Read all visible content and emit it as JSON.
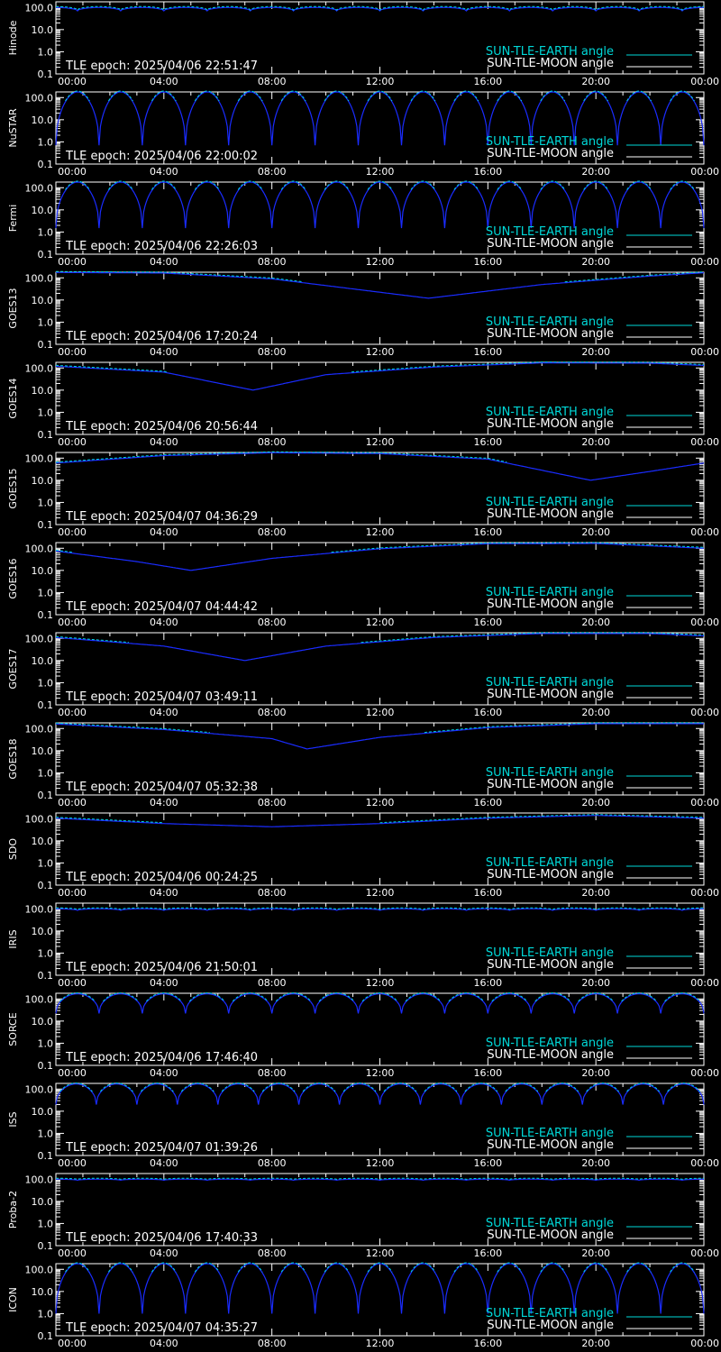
{
  "chart_data": [
    {
      "type": "line",
      "ylabel": "Hinode",
      "epoch": "TLE epoch: 2025/04/06 22:51:47",
      "pattern": "osc",
      "cycles": 15,
      "low": 70,
      "high": 100,
      "phase": 0.5
    },
    {
      "type": "line",
      "ylabel": "NuSTAR",
      "epoch": "TLE epoch: 2025/04/06 22:00:02",
      "pattern": "osc",
      "cycles": 15,
      "low": 0.7,
      "high": 180,
      "phase": 0.0
    },
    {
      "type": "line",
      "ylabel": "Fermi",
      "epoch": "TLE epoch: 2025/04/06 22:26:03",
      "pattern": "osc",
      "cycles": 15,
      "low": 1.5,
      "high": 180,
      "phase": 0.0
    },
    {
      "type": "line",
      "ylabel": "GOES13",
      "epoch": "TLE epoch: 2025/04/06 17:20:24",
      "pattern": "vee",
      "v": [
        [
          0,
          175
        ],
        [
          4,
          165
        ],
        [
          8,
          90
        ],
        [
          13.8,
          12
        ],
        [
          18,
          50
        ],
        [
          22,
          120
        ],
        [
          24,
          170
        ]
      ]
    },
    {
      "type": "line",
      "ylabel": "GOES14",
      "epoch": "TLE epoch: 2025/04/06 20:56:44",
      "pattern": "vee",
      "v": [
        [
          0,
          120
        ],
        [
          4,
          65
        ],
        [
          7.3,
          10
        ],
        [
          10,
          50
        ],
        [
          14,
          110
        ],
        [
          18,
          170
        ],
        [
          22,
          165
        ],
        [
          24,
          130
        ]
      ]
    },
    {
      "type": "line",
      "ylabel": "GOES15",
      "epoch": "TLE epoch: 2025/04/07 04:36:29",
      "pattern": "vee",
      "v": [
        [
          0,
          60
        ],
        [
          4,
          130
        ],
        [
          8,
          175
        ],
        [
          12,
          160
        ],
        [
          16,
          90
        ],
        [
          19.8,
          10
        ],
        [
          22,
          25
        ],
        [
          24,
          60
        ]
      ]
    },
    {
      "type": "line",
      "ylabel": "GOES16",
      "epoch": "TLE epoch: 2025/04/07 04:44:42",
      "pattern": "vee",
      "v": [
        [
          0,
          75
        ],
        [
          3,
          25
        ],
        [
          5,
          10
        ],
        [
          8,
          35
        ],
        [
          12,
          95
        ],
        [
          16,
          160
        ],
        [
          20,
          165
        ],
        [
          24,
          100
        ]
      ]
    },
    {
      "type": "line",
      "ylabel": "GOES17",
      "epoch": "TLE epoch: 2025/04/07 03:49:11",
      "pattern": "vee",
      "v": [
        [
          0,
          110
        ],
        [
          4,
          45
        ],
        [
          7,
          10
        ],
        [
          10,
          45
        ],
        [
          14,
          110
        ],
        [
          18,
          165
        ],
        [
          22,
          165
        ],
        [
          24,
          130
        ]
      ]
    },
    {
      "type": "line",
      "ylabel": "GOES18",
      "epoch": "TLE epoch: 2025/04/07 05:32:38",
      "pattern": "vee",
      "v": [
        [
          0,
          160
        ],
        [
          4,
          90
        ],
        [
          8,
          35
        ],
        [
          9.3,
          12
        ],
        [
          12,
          40
        ],
        [
          16,
          110
        ],
        [
          20,
          165
        ],
        [
          24,
          165
        ]
      ]
    },
    {
      "type": "line",
      "ylabel": "SDO",
      "epoch": "TLE epoch: 2025/04/06 00:24:25",
      "pattern": "vee",
      "v": [
        [
          0,
          105
        ],
        [
          4,
          60
        ],
        [
          8,
          43
        ],
        [
          12,
          60
        ],
        [
          16,
          105
        ],
        [
          20,
          140
        ],
        [
          24,
          105
        ]
      ]
    },
    {
      "type": "line",
      "ylabel": "IRIS",
      "epoch": "TLE epoch: 2025/04/06 21:50:01",
      "pattern": "osc",
      "cycles": 15,
      "low": 85,
      "high": 100,
      "phase": 0.5
    },
    {
      "type": "line",
      "ylabel": "SORCE",
      "epoch": "TLE epoch: 2025/04/06 17:46:40",
      "pattern": "osc",
      "cycles": 15,
      "low": 22,
      "high": 170,
      "phase": 0.0
    },
    {
      "type": "line",
      "ylabel": "ISS",
      "epoch": "TLE epoch: 2025/04/07 01:39:26",
      "pattern": "osc",
      "cycles": 16,
      "low": 20,
      "high": 170,
      "phase": 0.0
    },
    {
      "type": "line",
      "ylabel": "Proba-2",
      "epoch": "TLE epoch: 2025/04/06 17:40:33",
      "pattern": "osc",
      "cycles": 15,
      "low": 90,
      "high": 100,
      "phase": 0.5
    },
    {
      "type": "line",
      "ylabel": "ICON",
      "epoch": "TLE epoch: 2025/04/07 04:35:27",
      "pattern": "osc",
      "cycles": 15,
      "low": 1,
      "high": 180,
      "phase": 0.0
    }
  ],
  "x_ticks": [
    "00:00",
    "04:00",
    "08:00",
    "12:00",
    "16:00",
    "20:00",
    "00:00"
  ],
  "y_ticks": [
    "100.0",
    "10.0",
    "1.0",
    "0.1"
  ],
  "legend": {
    "earth": "SUN-TLE-EARTH angle",
    "moon": "SUN-TLE-MOON angle"
  },
  "colors": {
    "earth": "#00d8d8",
    "moon": "#ffffff",
    "angle": "#1a2cff",
    "axis": "#ffffff",
    "background": "#000000"
  },
  "y_scale": "log",
  "ylim": [
    0.1,
    180
  ]
}
